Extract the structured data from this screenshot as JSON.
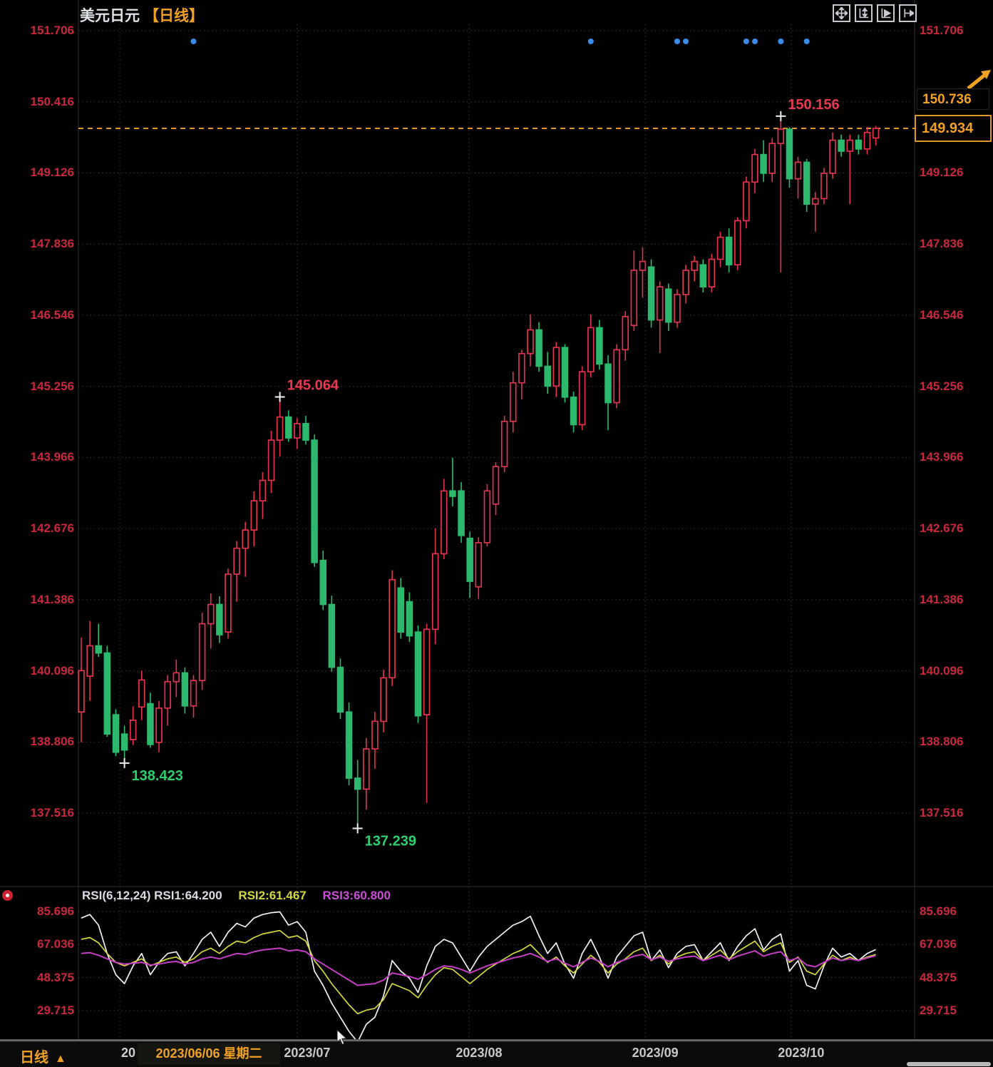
{
  "header": {
    "title": "美元日元",
    "period_tag": "【日线】"
  },
  "toolbar": {
    "icons": [
      "move",
      "y-axis-scale",
      "x-axis-play",
      "jump-to-latest"
    ]
  },
  "price_tags": {
    "high_tag": "150.736",
    "current_tag": "149.934"
  },
  "rsi_header": {
    "name": "RSI(6,12,24)",
    "rsi1": "RSI1:64.200",
    "rsi2": "RSI2:61.467",
    "rsi3": "RSI3:60.800"
  },
  "bottom_bar": {
    "period_label": "日线",
    "arrow": "▲"
  },
  "time_axis": {
    "covered_label_fragment": "20",
    "crosshair_date": "2023/06/06 星期二"
  },
  "colors": {
    "up": "#e23350",
    "down": "#2cb96e",
    "axis_text": "#c9293d",
    "orange": "#f0a126",
    "dashed_price_line": "#de9726",
    "blue_dot": "#3b8bea",
    "grid": "#3a3a3c",
    "rsi1": "#f2f2f2",
    "rsi2": "#d4d83e",
    "rsi3": "#c43fc4",
    "extreme_high_text": "#e83952",
    "extreme_low_text": "#2fcf6f"
  },
  "chart_data": {
    "type": "candlestick",
    "title": "美元日元 日线 (USD/JPY daily)",
    "y_ticks": [
      151.706,
      150.416,
      149.126,
      147.836,
      146.546,
      145.256,
      143.966,
      142.676,
      141.386,
      140.096,
      138.806,
      137.516
    ],
    "current_price": 149.934,
    "tag_price": 150.736,
    "months": [
      {
        "label": "2023/06",
        "i": 4.46,
        "covered": true
      },
      {
        "label": "2023/07",
        "i": 25.0
      },
      {
        "label": "2023/08",
        "i": 44.9
      },
      {
        "label": "2023/09",
        "i": 65.3
      },
      {
        "label": "2023/10",
        "i": 82.2
      }
    ],
    "blue_dot_indices": [
      13,
      59,
      69,
      70,
      77,
      78,
      81,
      84
    ],
    "extremes": [
      {
        "i": 5,
        "price": 138.423,
        "side": "low"
      },
      {
        "i": 23,
        "price": 145.064,
        "side": "high"
      },
      {
        "i": 32,
        "price": 137.239,
        "side": "low"
      },
      {
        "i": 81,
        "price": 150.156,
        "side": "high"
      }
    ],
    "candles": [
      [
        139.35,
        140.7,
        138.8,
        140.1
      ],
      [
        140.0,
        141.0,
        139.55,
        140.55
      ],
      [
        140.55,
        140.95,
        140.35,
        140.42
      ],
      [
        140.42,
        140.55,
        138.9,
        138.95
      ],
      [
        139.3,
        139.4,
        138.55,
        138.62
      ],
      [
        138.95,
        139.1,
        138.423,
        138.66
      ],
      [
        138.85,
        139.45,
        138.75,
        139.2
      ],
      [
        139.44,
        140.1,
        139.2,
        139.93
      ],
      [
        139.5,
        139.7,
        138.7,
        138.76
      ],
      [
        138.8,
        139.55,
        138.62,
        139.42
      ],
      [
        139.42,
        140.02,
        139.1,
        139.9
      ],
      [
        139.9,
        140.3,
        139.62,
        140.06
      ],
      [
        140.06,
        140.16,
        139.32,
        139.46
      ],
      [
        139.46,
        140.02,
        139.25,
        139.92
      ],
      [
        139.92,
        141.15,
        139.75,
        140.95
      ],
      [
        140.95,
        141.5,
        140.5,
        141.3
      ],
      [
        141.3,
        141.45,
        140.6,
        140.75
      ],
      [
        140.8,
        141.95,
        140.68,
        141.85
      ],
      [
        141.85,
        142.45,
        141.35,
        142.32
      ],
      [
        142.32,
        142.8,
        141.8,
        142.65
      ],
      [
        142.65,
        143.35,
        142.35,
        143.18
      ],
      [
        143.18,
        143.7,
        142.85,
        143.55
      ],
      [
        143.55,
        144.45,
        143.32,
        144.28
      ],
      [
        144.28,
        145.064,
        143.98,
        144.7
      ],
      [
        144.7,
        144.82,
        144.25,
        144.32
      ],
      [
        144.32,
        144.68,
        144.12,
        144.58
      ],
      [
        144.58,
        144.72,
        144.2,
        144.28
      ],
      [
        144.28,
        144.38,
        141.98,
        142.06
      ],
      [
        142.1,
        142.28,
        141.2,
        141.3
      ],
      [
        141.3,
        141.46,
        140.08,
        140.16
      ],
      [
        140.16,
        140.32,
        139.22,
        139.35
      ],
      [
        139.35,
        139.52,
        138.02,
        138.15
      ],
      [
        138.15,
        138.48,
        137.239,
        137.95
      ],
      [
        137.95,
        138.88,
        137.58,
        138.68
      ],
      [
        138.68,
        139.35,
        138.32,
        139.18
      ],
      [
        139.18,
        140.12,
        138.98,
        139.97
      ],
      [
        139.97,
        141.92,
        139.82,
        141.75
      ],
      [
        141.6,
        141.78,
        140.68,
        140.8
      ],
      [
        141.35,
        141.52,
        140.62,
        140.73
      ],
      [
        140.8,
        140.92,
        139.15,
        139.28
      ],
      [
        139.3,
        140.95,
        137.7,
        140.85
      ],
      [
        140.85,
        142.68,
        140.58,
        142.22
      ],
      [
        142.22,
        143.58,
        142.12,
        143.36
      ],
      [
        143.36,
        143.96,
        143.08,
        143.26
      ],
      [
        143.36,
        143.52,
        142.42,
        142.55
      ],
      [
        142.5,
        142.62,
        141.42,
        141.72
      ],
      [
        141.62,
        142.52,
        141.4,
        142.42
      ],
      [
        142.42,
        143.48,
        142.35,
        143.36
      ],
      [
        143.12,
        143.88,
        142.92,
        143.8
      ],
      [
        143.8,
        144.72,
        143.7,
        144.62
      ],
      [
        144.62,
        145.52,
        144.42,
        145.32
      ],
      [
        145.32,
        145.92,
        145.02,
        145.85
      ],
      [
        145.85,
        146.56,
        145.62,
        146.28
      ],
      [
        146.28,
        146.42,
        145.52,
        145.62
      ],
      [
        145.62,
        145.88,
        145.12,
        145.26
      ],
      [
        145.26,
        146.06,
        145.06,
        145.96
      ],
      [
        145.96,
        146.02,
        144.96,
        145.06
      ],
      [
        145.06,
        145.16,
        144.42,
        144.56
      ],
      [
        144.56,
        145.62,
        144.46,
        145.52
      ],
      [
        145.52,
        146.56,
        145.42,
        146.32
      ],
      [
        146.32,
        146.46,
        145.56,
        145.66
      ],
      [
        145.66,
        145.82,
        144.46,
        144.96
      ],
      [
        144.96,
        146.02,
        144.86,
        145.92
      ],
      [
        145.92,
        146.62,
        145.72,
        146.52
      ],
      [
        146.36,
        147.72,
        146.26,
        147.36
      ],
      [
        147.36,
        147.78,
        146.86,
        147.52
      ],
      [
        147.42,
        147.56,
        146.32,
        146.46
      ],
      [
        146.46,
        147.16,
        145.86,
        147.06
      ],
      [
        147.02,
        147.12,
        146.26,
        146.42
      ],
      [
        146.42,
        147.02,
        146.32,
        146.92
      ],
      [
        146.92,
        147.46,
        146.76,
        147.36
      ],
      [
        147.36,
        147.62,
        147.16,
        147.52
      ],
      [
        147.46,
        147.56,
        146.96,
        147.06
      ],
      [
        147.06,
        147.66,
        146.96,
        147.56
      ],
      [
        147.56,
        148.06,
        147.42,
        147.96
      ],
      [
        147.96,
        148.12,
        147.32,
        147.46
      ],
      [
        147.46,
        148.32,
        147.36,
        148.26
      ],
      [
        148.26,
        149.06,
        148.12,
        148.96
      ],
      [
        148.96,
        149.56,
        148.76,
        149.46
      ],
      [
        149.46,
        149.72,
        148.96,
        149.12
      ],
      [
        149.12,
        149.76,
        148.96,
        149.66
      ],
      [
        149.66,
        150.156,
        147.32,
        149.92
      ],
      [
        149.92,
        149.96,
        148.86,
        149.02
      ],
      [
        149.02,
        149.42,
        148.66,
        149.32
      ],
      [
        149.32,
        149.38,
        148.42,
        148.56
      ],
      [
        148.56,
        148.78,
        148.06,
        148.66
      ],
      [
        148.66,
        149.22,
        148.56,
        149.12
      ],
      [
        149.12,
        149.86,
        149.02,
        149.72
      ],
      [
        149.72,
        149.82,
        149.42,
        149.52
      ],
      [
        149.52,
        149.82,
        148.56,
        149.72
      ],
      [
        149.72,
        149.82,
        149.46,
        149.56
      ],
      [
        149.56,
        149.96,
        149.46,
        149.86
      ],
      [
        149.76,
        149.98,
        149.62,
        149.934
      ]
    ],
    "rsi": {
      "params": [
        6,
        12,
        24
      ],
      "current_values": [
        64.2,
        61.467,
        60.8
      ],
      "ticks": [
        85.696,
        67.036,
        48.375,
        29.715
      ],
      "series": {
        "rsi1": [
          82,
          84,
          78,
          62,
          50,
          45,
          55,
          62,
          50,
          57,
          62,
          63,
          55,
          62,
          70,
          74,
          66,
          74,
          79,
          77,
          82,
          84,
          85,
          85.5,
          78,
          80,
          74,
          52,
          44,
          34,
          26,
          18,
          12,
          22,
          26,
          38,
          58,
          52,
          48,
          40,
          55,
          66,
          70,
          68,
          60,
          52,
          60,
          66,
          70,
          74,
          78,
          80,
          83,
          72,
          62,
          68,
          56,
          48,
          62,
          70,
          60,
          48,
          60,
          66,
          72,
          74,
          58,
          64,
          54,
          62,
          66,
          67,
          58,
          63,
          68,
          58,
          66,
          72,
          76,
          64,
          70,
          73,
          52,
          58,
          44,
          42,
          55,
          65,
          60,
          62,
          58,
          62,
          64.2
        ],
        "rsi2": [
          70,
          71,
          68,
          62,
          57,
          55,
          57,
          59,
          55,
          57,
          59,
          60,
          57,
          59,
          63,
          65,
          62,
          66,
          69,
          68,
          71,
          73,
          74,
          75,
          71,
          72,
          69,
          58,
          52,
          45,
          39,
          33,
          28,
          30,
          31,
          36,
          45,
          43,
          41,
          37,
          44,
          50,
          54,
          53,
          49,
          45,
          49,
          53,
          56,
          59,
          62,
          64,
          67,
          62,
          57,
          60,
          55,
          51,
          56,
          61,
          57,
          51,
          56,
          59,
          63,
          65,
          58,
          61,
          56,
          60,
          62,
          63,
          58,
          61,
          64,
          59,
          63,
          66,
          69,
          63,
          66,
          68,
          57,
          60,
          52,
          50,
          56,
          61,
          58,
          60,
          58,
          60,
          61.467
        ],
        "rsi3": [
          62,
          62.5,
          61,
          59,
          57,
          56,
          56.5,
          57,
          55.5,
          56,
          57,
          57.5,
          56,
          57,
          59,
          60,
          59,
          60.5,
          62,
          61.5,
          63,
          64,
          64.5,
          65,
          63.5,
          64,
          63,
          59,
          56,
          53,
          50,
          47,
          44,
          44.5,
          45,
          47,
          51,
          50,
          49,
          47.5,
          50,
          53,
          55,
          54.5,
          53,
          51,
          53,
          55,
          56.5,
          58,
          59.5,
          60.5,
          62,
          60,
          57.5,
          59,
          56.5,
          54.5,
          57,
          59.5,
          57.5,
          54.5,
          57,
          58.5,
          60.5,
          61.5,
          58.5,
          60,
          57.5,
          59,
          60,
          60.5,
          58,
          59.5,
          61,
          58.5,
          60.5,
          62,
          63.5,
          60.5,
          62,
          63,
          58,
          59.5,
          55.5,
          54.5,
          57,
          59.5,
          58,
          59,
          58,
          59.5,
          60.8
        ]
      }
    }
  }
}
